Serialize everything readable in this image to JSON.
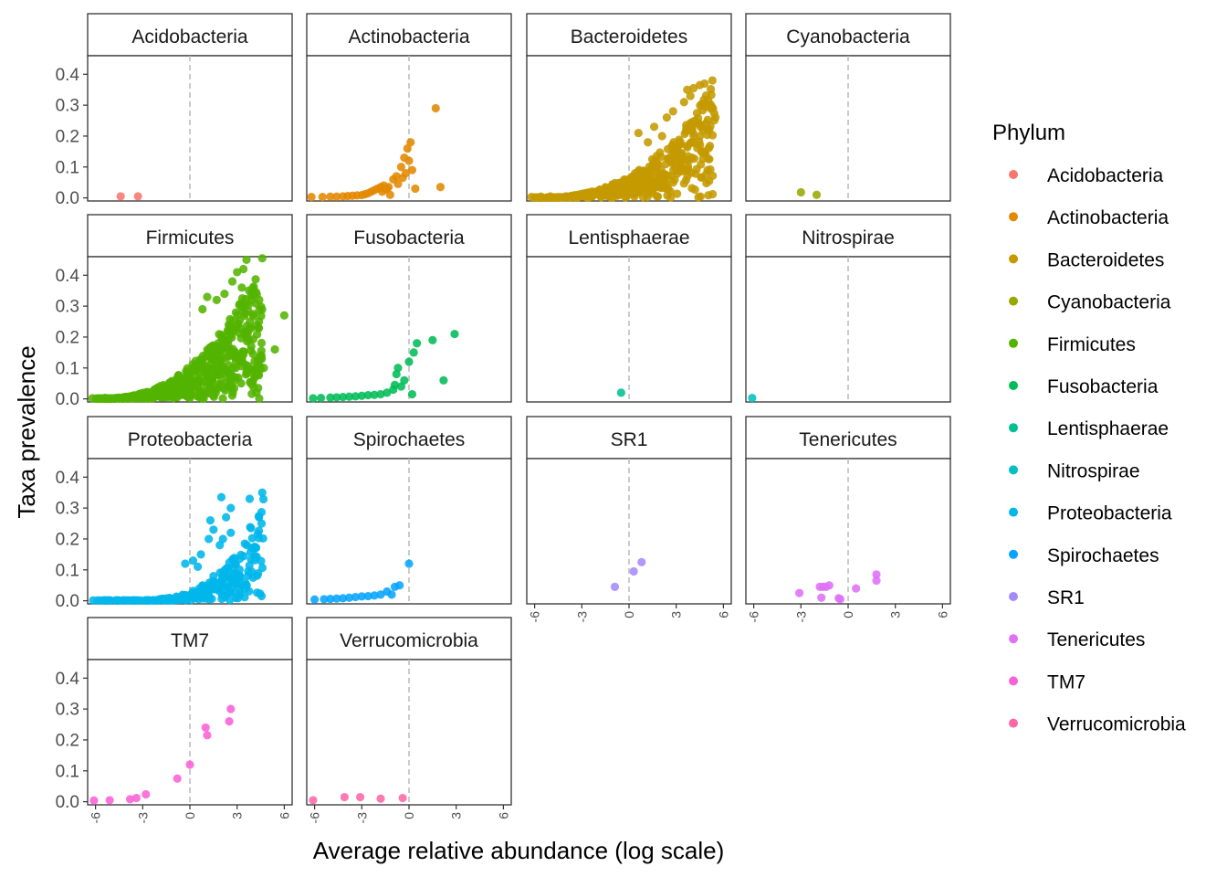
{
  "chart_data": {
    "type": "scatter",
    "layout": "facet_wrap",
    "xlabel": "Average relative abundance (log scale)",
    "ylabel": "Taxa prevalence",
    "xlim": [
      -6.5,
      6.5
    ],
    "ylim": [
      -0.01,
      0.46
    ],
    "x_ticks": [
      -6,
      -3,
      0,
      3,
      6
    ],
    "x_tick_labels": [
      "-6",
      "-3",
      "0",
      "3",
      "6"
    ],
    "y_ticks": [
      0.0,
      0.1,
      0.2,
      0.3,
      0.4
    ],
    "y_tick_labels": [
      "0.0",
      "0.1",
      "0.2",
      "0.3",
      "0.4"
    ],
    "reference_line": {
      "x": 0,
      "style": "dashed",
      "color": "#bebebe"
    },
    "legend": {
      "title": "Phylum",
      "position": "right"
    },
    "grid": false,
    "series": [
      {
        "name": "Acidobacteria",
        "color": "#F8766D",
        "points": [
          [
            -4.4,
            0.005
          ],
          [
            -3.3,
            0.005
          ]
        ]
      },
      {
        "name": "Actinobacteria",
        "color": "#E38900",
        "points": [
          [
            -6.2,
            0.003
          ],
          [
            -5.5,
            0.003
          ],
          [
            -5,
            0.004
          ],
          [
            -4.6,
            0.004
          ],
          [
            -4.2,
            0.005
          ],
          [
            -3.9,
            0.006
          ],
          [
            -3.6,
            0.007
          ],
          [
            -3.3,
            0.008
          ],
          [
            -3.0,
            0.009
          ],
          [
            -2.8,
            0.012
          ],
          [
            -2.6,
            0.015
          ],
          [
            -2.4,
            0.02
          ],
          [
            -2.2,
            0.025
          ],
          [
            -2,
            0.03
          ],
          [
            -1.8,
            0.035
          ],
          [
            -1.7,
            0.02
          ],
          [
            -1.6,
            0.04
          ],
          [
            -1.5,
            0.028
          ],
          [
            -1.4,
            0.03
          ],
          [
            -1.3,
            0.035
          ],
          [
            -1.2,
            0.01
          ],
          [
            -1,
            0.06
          ],
          [
            -0.8,
            0.07
          ],
          [
            -0.7,
            0.045
          ],
          [
            -0.5,
            0.1
          ],
          [
            -0.4,
            0.065
          ],
          [
            -0.3,
            0.13
          ],
          [
            -0.2,
            0.08
          ],
          [
            -0.1,
            0.16
          ],
          [
            0,
            0.12
          ],
          [
            0.1,
            0.18
          ],
          [
            0.2,
            0.09
          ],
          [
            0.4,
            0.03
          ],
          [
            1.7,
            0.29
          ],
          [
            2,
            0.035
          ]
        ]
      },
      {
        "name": "Bacteroidetes",
        "color": "#C49A00",
        "generated": {
          "seed": 3,
          "n": 420,
          "xmin": -6.2,
          "xmax": 5.5,
          "ymax": 0.38,
          "style": "cloud"
        },
        "points": [
          [
            5.3,
            0.38
          ],
          [
            4.8,
            0.37
          ],
          [
            4.5,
            0.365
          ],
          [
            4.1,
            0.355
          ],
          [
            3.7,
            0.35
          ],
          [
            3.9,
            0.33
          ],
          [
            3.5,
            0.31
          ],
          [
            2.8,
            0.28
          ],
          [
            2.4,
            0.26
          ],
          [
            4.2,
            0.25
          ],
          [
            4.5,
            0.2
          ],
          [
            4.0,
            0.13
          ],
          [
            3.3,
            0.1
          ],
          [
            2.1,
            0.2
          ],
          [
            1.6,
            0.23
          ],
          [
            1.2,
            0.18
          ],
          [
            0.6,
            0.21
          ],
          [
            -6.2,
            0.003
          ],
          [
            -5.6,
            0.004
          ],
          [
            -5,
            0.005
          ]
        ]
      },
      {
        "name": "Cyanobacteria",
        "color": "#99A800",
        "points": [
          [
            -3,
            0.018
          ],
          [
            -2,
            0.01
          ]
        ]
      },
      {
        "name": "Firmicutes",
        "color": "#53B400",
        "generated": {
          "seed": 7,
          "n": 560,
          "xmin": -6.2,
          "xmax": 4.6,
          "ymax": 0.45,
          "style": "cloud"
        },
        "points": [
          [
            4.6,
            0.455
          ],
          [
            3.6,
            0.45
          ],
          [
            3.4,
            0.42
          ],
          [
            3.0,
            0.41
          ],
          [
            3.3,
            0.36
          ],
          [
            2.7,
            0.38
          ],
          [
            2.2,
            0.34
          ],
          [
            1.7,
            0.32
          ],
          [
            1.1,
            0.33
          ],
          [
            0.8,
            0.29
          ],
          [
            3.6,
            0.2
          ],
          [
            3.9,
            0.17
          ],
          [
            4.5,
            0.14
          ],
          [
            5.4,
            0.16
          ],
          [
            4.7,
            0.1
          ],
          [
            3.2,
            0.12
          ],
          [
            6.0,
            0.27
          ],
          [
            2.8,
            0.22
          ],
          [
            -6.2,
            0.002
          ],
          [
            -5.4,
            0.003
          ]
        ]
      },
      {
        "name": "Fusobacteria",
        "color": "#00BC56",
        "points": [
          [
            -6.1,
            0.002
          ],
          [
            -5.6,
            0.003
          ],
          [
            -5.0,
            0.004
          ],
          [
            -4.6,
            0.005
          ],
          [
            -4.2,
            0.006
          ],
          [
            -3.8,
            0.007
          ],
          [
            -3.4,
            0.008
          ],
          [
            -3.0,
            0.01
          ],
          [
            -2.6,
            0.012
          ],
          [
            -2.2,
            0.013
          ],
          [
            -1.8,
            0.015
          ],
          [
            -1.4,
            0.02
          ],
          [
            -1.0,
            0.03
          ],
          [
            -0.9,
            0.045
          ],
          [
            -0.8,
            0.08
          ],
          [
            -0.7,
            0.1
          ],
          [
            -0.5,
            0.04
          ],
          [
            -0.3,
            0.06
          ],
          [
            0,
            0.12
          ],
          [
            0.2,
            0.015
          ],
          [
            0.3,
            0.15
          ],
          [
            0.5,
            0.18
          ],
          [
            1.5,
            0.19
          ],
          [
            2.9,
            0.21
          ],
          [
            2.2,
            0.06
          ]
        ]
      },
      {
        "name": "Lentisphaerae",
        "color": "#00C094",
        "points": [
          [
            -0.5,
            0.02
          ]
        ]
      },
      {
        "name": "Nitrospirae",
        "color": "#00BFC4",
        "points": [
          [
            -6.1,
            0.003
          ]
        ]
      },
      {
        "name": "Proteobacteria",
        "color": "#00B6EB",
        "generated": {
          "seed": 11,
          "n": 240,
          "xmin": -6.2,
          "xmax": 4.7,
          "ymax": 0.35,
          "style": "flat"
        },
        "points": [
          [
            4.6,
            0.35
          ],
          [
            3.8,
            0.33
          ],
          [
            2,
            0.335
          ],
          [
            2.6,
            0.3
          ],
          [
            2.3,
            0.27
          ],
          [
            1.3,
            0.26
          ],
          [
            2.6,
            0.22
          ],
          [
            2.1,
            0.2
          ],
          [
            1.9,
            0.18
          ],
          [
            1.5,
            0.23
          ],
          [
            1.2,
            0.2
          ],
          [
            0.7,
            0.15
          ],
          [
            0.5,
            0.11
          ],
          [
            0.2,
            0.13
          ],
          [
            -0.3,
            0.12
          ],
          [
            3.5,
            0.06
          ],
          [
            2.9,
            0.09
          ],
          [
            2.2,
            0.08
          ],
          [
            1.5,
            0.08
          ],
          [
            1.9,
            0.03
          ],
          [
            2.4,
            0.05
          ],
          [
            0.8,
            0.05
          ],
          [
            0.5,
            0.015
          ],
          [
            -0.2,
            0.005
          ]
        ]
      },
      {
        "name": "Spirochaetes",
        "color": "#06A4FF",
        "points": [
          [
            -6.0,
            0.004
          ],
          [
            -5.4,
            0.005
          ],
          [
            -5.0,
            0.006
          ],
          [
            -4.6,
            0.007
          ],
          [
            -4.2,
            0.008
          ],
          [
            -3.8,
            0.01
          ],
          [
            -3.4,
            0.012
          ],
          [
            -3.0,
            0.014
          ],
          [
            -2.6,
            0.015
          ],
          [
            -2.2,
            0.017
          ],
          [
            -1.8,
            0.02
          ],
          [
            -1.4,
            0.03
          ],
          [
            -1.1,
            0.02
          ],
          [
            -0.9,
            0.045
          ],
          [
            -0.6,
            0.05
          ],
          [
            0,
            0.12
          ]
        ]
      },
      {
        "name": "SR1",
        "color": "#A58AFF",
        "points": [
          [
            -0.9,
            0.045
          ],
          [
            0.3,
            0.095
          ],
          [
            0.8,
            0.125
          ]
        ]
      },
      {
        "name": "Tenericutes",
        "color": "#DF70F8",
        "points": [
          [
            -3.1,
            0.025
          ],
          [
            -1.8,
            0.045
          ],
          [
            -1.6,
            0.045
          ],
          [
            -1.4,
            0.045
          ],
          [
            -1.2,
            0.05
          ],
          [
            -1.7,
            0.01
          ],
          [
            -0.6,
            0.008
          ],
          [
            -0.5,
            0.005
          ],
          [
            0.5,
            0.04
          ],
          [
            1.8,
            0.085
          ],
          [
            1.8,
            0.065
          ]
        ]
      },
      {
        "name": "TM7",
        "color": "#FB61D7",
        "points": [
          [
            -6.1,
            0.004
          ],
          [
            -5.1,
            0.005
          ],
          [
            -3.8,
            0.008
          ],
          [
            -3.4,
            0.012
          ],
          [
            -2.8,
            0.024
          ],
          [
            -0.8,
            0.075
          ],
          [
            0,
            0.12
          ],
          [
            1.0,
            0.24
          ],
          [
            1.1,
            0.215
          ],
          [
            2.5,
            0.26
          ],
          [
            2.6,
            0.3
          ]
        ]
      },
      {
        "name": "Verrucomicrobia",
        "color": "#FF66A8",
        "points": [
          [
            -6.1,
            0.005
          ],
          [
            -4.1,
            0.015
          ],
          [
            -3.1,
            0.015
          ],
          [
            -1.8,
            0.01
          ],
          [
            -0.4,
            0.012
          ]
        ]
      }
    ]
  }
}
